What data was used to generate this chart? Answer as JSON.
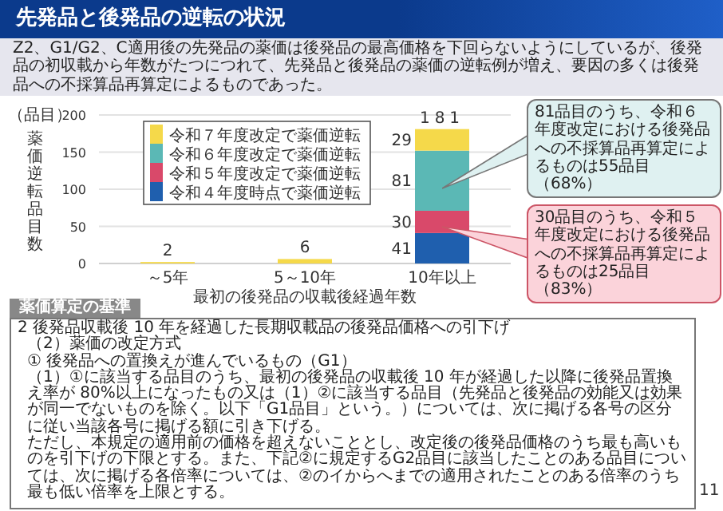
{
  "chart_data": {
    "type": "bar",
    "stacked": true,
    "title": "先発品と後発品の逆転の状況",
    "subtitle": "Z2、G1/G2、C適用後の先発品の薬価は後発品の最高価格を下回らないようにしているが、後発品の初収載から年数がたつにつれて、先発品と後発品の薬価の逆転例が増え、要因の多くは後発品への不採算品再算定によるものであった。",
    "xlabel": "最初の後発品の収載後経過年数",
    "ylabel": "薬価逆転品目数",
    "categories": [
      "～5年",
      "5～10年",
      "10年以上"
    ],
    "series": [
      {
        "name": "令和４年度時点で薬価逆転",
        "color": "#1f5fae",
        "values": [
          0,
          0,
          41
        ],
        "value_labels": [
          null,
          null,
          "41"
        ]
      },
      {
        "name": "令和５年度改定で薬価逆転",
        "color": "#d9496a",
        "values": [
          0,
          0,
          30
        ],
        "value_labels": [
          null,
          null,
          "30"
        ]
      },
      {
        "name": "令和６年度改定で薬価逆転",
        "color": "#5bb8b5",
        "values": [
          0,
          0,
          81
        ],
        "value_labels": [
          null,
          null,
          "81"
        ]
      },
      {
        "name": "令和７年度改定で薬価逆転",
        "color": "#f5d94a",
        "values": [
          2,
          6,
          29
        ],
        "value_labels": [
          null,
          null,
          "29"
        ]
      }
    ],
    "totals": [
      "2",
      "6",
      "181"
    ],
    "ylim": [
      0,
      200
    ],
    "yticks": [
      0,
      50,
      100,
      150,
      200
    ],
    "grid": "y",
    "legend": "top left",
    "annotations": [
      "（品目）",
      "81品目のうち、令和６年度改定における後発品への不採算品再算定によるものは55品目（68%）",
      "30品目のうち、令和５年度改定における後発品への不採算品再算定によるものは25品目（83%）",
      "薬価算定の基準",
      "2 後発品収載後 10 年を経過した長期収載品の後発品価格への引下げ",
      "（2）薬価の改定方式",
      "① 後発品への置換えが進んでいるもの（G1）",
      "（1）①に該当する品目のうち、最初の後発品の収載後 10 年が経過した以降に後発品置換え率が 80%以上になったもの又は（1）②に該当する品目（先発品と後発品の効能又は効果が同一でないものを除く。以下「G1品目」という。）については、次に掲げる各号の区分に従い当該各号に掲げる額に引き下げる。",
      "ただし、本規定の適用前の価格を超えないこととし、改定後の後発品価格のうち最も高いものを引下げの下限とする。また、下記②に規定するG2品目に該当したことのある品目については、次に掲げる各倍率については、②のイからへまでの適用されたことのある倍率のうち最も低い倍率を上限とする。",
      "11"
    ]
  }
}
